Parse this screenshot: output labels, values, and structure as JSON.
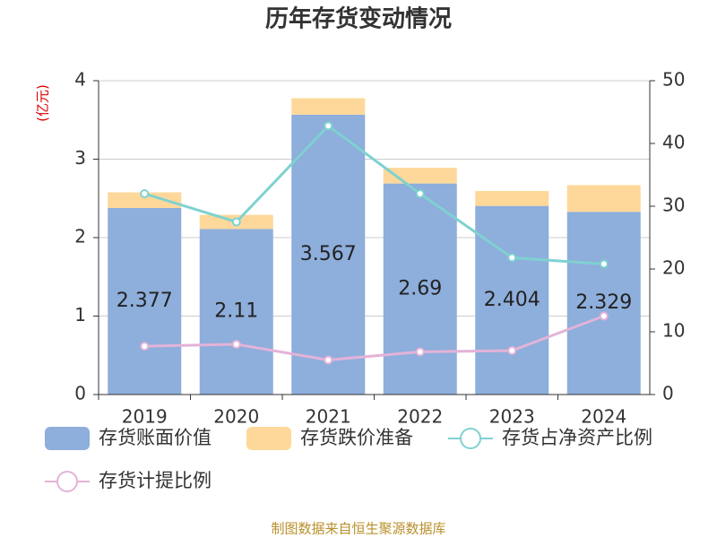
{
  "chart_data": {
    "type": "bar_line",
    "title": "历年存货变动情况",
    "y_label": "(亿元)",
    "footer": "制图数据来自恒生聚源数据库",
    "categories": [
      "2019",
      "2020",
      "2021",
      "2022",
      "2023",
      "2024"
    ],
    "series": [
      {
        "name": "存货账面价值",
        "color": "#8eaedb",
        "kind": "bar",
        "values": [
          2.377,
          2.11,
          3.567,
          2.69,
          2.404,
          2.329
        ]
      },
      {
        "name": "存货跌价准备",
        "color": "#fdd89a",
        "kind": "bar",
        "values": [
          0.2,
          0.18,
          0.21,
          0.2,
          0.19,
          0.34
        ]
      },
      {
        "name": "存货占净资产比例",
        "color": "#7fd1d1",
        "kind": "line",
        "axis": "y2",
        "values": [
          32,
          27.5,
          42.8,
          32,
          21.8,
          20.8
        ]
      },
      {
        "name": "存货计提比例",
        "color": "#e3b3d8",
        "kind": "line",
        "axis": "y2",
        "values": [
          7.7,
          8,
          5.5,
          6.8,
          7,
          12.5
        ]
      }
    ],
    "ylim": [
      0,
      4
    ],
    "yticks": [
      0,
      1,
      2,
      3,
      4
    ],
    "y2lim": [
      0,
      50
    ],
    "y2ticks": [
      0,
      10,
      20,
      30,
      40,
      50
    ],
    "grid": true
  }
}
